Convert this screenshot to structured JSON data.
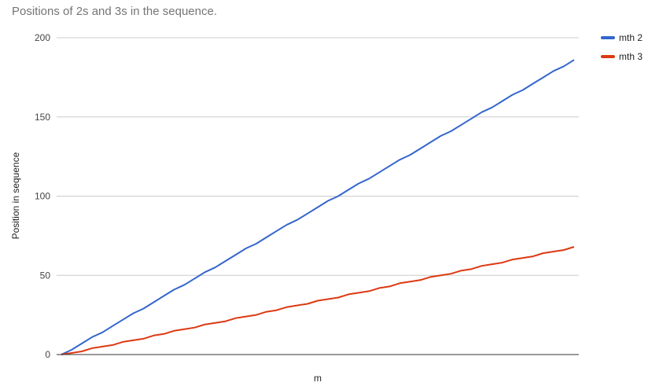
{
  "chart_data": {
    "type": "line",
    "title": "Positions of 2s and 3s in the sequence.",
    "xlabel": "m",
    "ylabel": "Position in sequence",
    "ylim": [
      0,
      200
    ],
    "yticks": [
      0,
      50,
      100,
      150,
      200
    ],
    "grid": true,
    "legend_position": "right",
    "x": [
      1,
      2,
      3,
      4,
      5,
      6,
      7,
      8,
      9,
      10,
      11,
      12,
      13,
      14,
      15,
      16,
      17,
      18,
      19,
      20,
      21,
      22,
      23,
      24,
      25,
      26,
      27,
      28,
      29,
      30,
      31,
      32,
      33,
      34,
      35,
      36,
      37,
      38,
      39,
      40,
      41,
      42,
      43,
      44,
      45,
      46,
      47,
      48,
      49,
      50,
      51
    ],
    "series": [
      {
        "name": "mth 2",
        "color": "#3366cc",
        "values": [
          0,
          3,
          7,
          11,
          14,
          18,
          22,
          26,
          29,
          33,
          37,
          41,
          44,
          48,
          52,
          55,
          59,
          63,
          67,
          70,
          74,
          78,
          82,
          85,
          89,
          93,
          97,
          100,
          104,
          108,
          111,
          115,
          119,
          123,
          126,
          130,
          134,
          138,
          141,
          145,
          149,
          153,
          156,
          160,
          164,
          167,
          171,
          175,
          179,
          182,
          186
        ]
      },
      {
        "name": "mth 3",
        "color": "#dc3912",
        "values": [
          0,
          1,
          2,
          4,
          5,
          6,
          8,
          9,
          10,
          12,
          13,
          15,
          16,
          17,
          19,
          20,
          21,
          23,
          24,
          25,
          27,
          28,
          30,
          31,
          32,
          34,
          35,
          36,
          38,
          39,
          40,
          42,
          43,
          45,
          46,
          47,
          49,
          50,
          51,
          53,
          54,
          56,
          57,
          58,
          60,
          61,
          62,
          64,
          65,
          66,
          68
        ]
      }
    ]
  }
}
